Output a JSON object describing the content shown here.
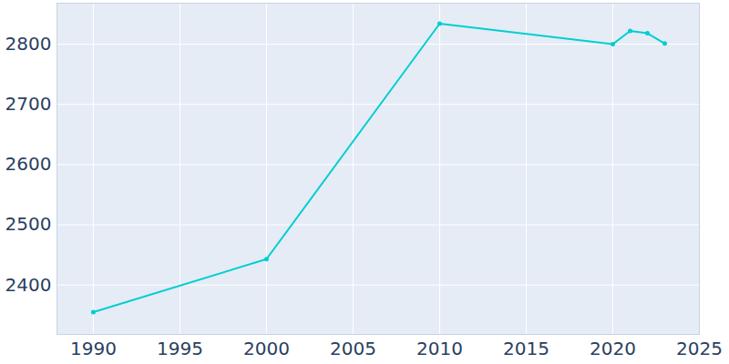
{
  "chart_data": {
    "type": "line",
    "x": [
      1990,
      2000,
      2010,
      2020,
      2021,
      2022,
      2023
    ],
    "values": [
      2355,
      2443,
      2834,
      2800,
      2822,
      2818,
      2801
    ],
    "color": "#00ced1",
    "marker": "circle",
    "xlim": [
      1987.9,
      2025
    ],
    "ylim": [
      2318,
      2868
    ],
    "xticks": [
      1990,
      1995,
      2000,
      2005,
      2010,
      2015,
      2020,
      2025
    ],
    "yticks": [
      2400,
      2500,
      2600,
      2700,
      2800
    ],
    "grid": true
  }
}
